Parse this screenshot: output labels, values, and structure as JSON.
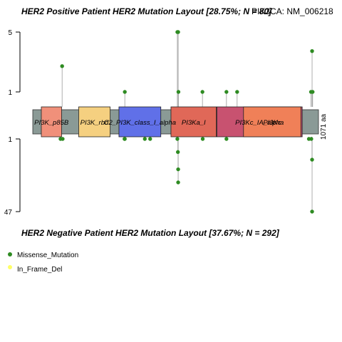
{
  "chart_data": {
    "type": "scatter",
    "top_title": "HER2 Positive Patient HER2 Mutation Layout [28.75%; N = 80]",
    "gene_label": "PIK3CA: NM_006218",
    "bottom_title": "HER2 Negative Patient HER2 Mutation Layout [37.67%; N = 292]",
    "protein_length_label": "1071 aa",
    "protein_length": 1071,
    "y_ticks_up": [
      "5",
      "1"
    ],
    "y_ticks_down": [
      "1",
      "47"
    ],
    "domains": [
      {
        "name": "PI3K_p85B",
        "start": 32,
        "end": 108,
        "color": "#f0907a"
      },
      {
        "name": "PI3K_rbd",
        "start": 172,
        "end": 290,
        "color": "#f5d080"
      },
      {
        "name": "C2_PI3K_class_I_alpha",
        "start": 323,
        "end": 480,
        "color": "#6070e8"
      },
      {
        "name": "PI3Ka_I",
        "start": 518,
        "end": 688,
        "color": "#e06858"
      },
      {
        "name": "PI3Kc_IA_alpha",
        "start": 690,
        "end": 1010,
        "color": "#c85270"
      },
      {
        "name": "PI3Kc",
        "start": 790,
        "end": 1005,
        "color": "#f08058"
      }
    ],
    "domain_labels": [
      "PI3K_p85B",
      "PI3K_rbd",
      "C2_PI3K_class_I_alpha",
      "PI3Ka_I",
      "PI3Kc_IA_alpha",
      "PI3Kc"
    ],
    "mutations_positive": [
      {
        "pos": 110,
        "count": 2
      },
      {
        "pos": 345,
        "count": 1
      },
      {
        "pos": 542,
        "count": 5
      },
      {
        "pos": 545,
        "count": 5
      },
      {
        "pos": 546,
        "count": 1
      },
      {
        "pos": 636,
        "count": 1
      },
      {
        "pos": 726,
        "count": 1
      },
      {
        "pos": 766,
        "count": 1
      },
      {
        "pos": 1043,
        "count": 1
      },
      {
        "pos": 1047,
        "count": 3
      },
      {
        "pos": 1049,
        "count": 1
      }
    ],
    "mutations_negative": [
      {
        "pos": 104,
        "count": 1
      },
      {
        "pos": 112,
        "count": 1
      },
      {
        "pos": 344,
        "count": 1
      },
      {
        "pos": 345,
        "count": 1
      },
      {
        "pos": 420,
        "count": 1
      },
      {
        "pos": 440,
        "count": 1
      },
      {
        "pos": 542,
        "count": 1
      },
      {
        "pos": 544,
        "count": 2
      },
      {
        "pos": 545,
        "count": 5
      },
      {
        "pos": 545,
        "count": 10
      },
      {
        "pos": 637,
        "count": 1
      },
      {
        "pos": 726,
        "count": 1
      },
      {
        "pos": 1035,
        "count": 1
      },
      {
        "pos": 1044,
        "count": 1
      },
      {
        "pos": 1047,
        "count": 3
      },
      {
        "pos": 1047,
        "count": 47
      }
    ],
    "legend": [
      {
        "label": "Missense_Mutation",
        "color": "#2e8b22"
      },
      {
        "label": "In_Frame_Del",
        "color": "#ffff66"
      }
    ],
    "mutation_color": "#2e8b22",
    "backbone_color": "#8a9a96"
  }
}
